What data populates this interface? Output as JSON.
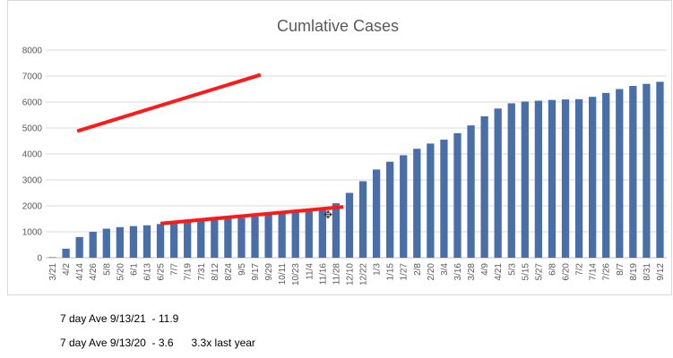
{
  "chart_data": {
    "type": "bar",
    "title": "Cumlative Cases",
    "xlabel": "",
    "ylabel": "",
    "ylim": [
      0,
      8000
    ],
    "yticks": [
      0,
      1000,
      2000,
      3000,
      4000,
      5000,
      6000,
      7000,
      8000
    ],
    "grid": true,
    "legend": "none",
    "bar_color": "#4a6fa8",
    "categories": [
      "3/21",
      "4/2",
      "4/14",
      "4/26",
      "5/8",
      "5/20",
      "6/1",
      "6/13",
      "6/25",
      "7/7",
      "7/19",
      "7/31",
      "8/12",
      "8/24",
      "9/5",
      "9/17",
      "9/29",
      "10/11",
      "10/23",
      "11/4",
      "11/16",
      "11/28",
      "12/10",
      "12/22",
      "1/3",
      "1/15",
      "1/27",
      "2/8",
      "2/20",
      "3/4",
      "3/16",
      "3/28",
      "4/9",
      "4/21",
      "5/3",
      "5/15",
      "5/27",
      "6/8",
      "6/20",
      "7/2",
      "7/14",
      "7/26",
      "8/7",
      "8/19",
      "8/31",
      "9/12"
    ],
    "values": [
      20,
      350,
      800,
      1000,
      1120,
      1180,
      1220,
      1250,
      1300,
      1350,
      1400,
      1430,
      1460,
      1500,
      1540,
      1590,
      1650,
      1700,
      1760,
      1820,
      1900,
      2100,
      2500,
      2950,
      3400,
      3700,
      3950,
      4200,
      4400,
      4550,
      4800,
      5100,
      5450,
      5750,
      5950,
      6020,
      6050,
      6080,
      6100,
      6110,
      6200,
      6350,
      6500,
      6620,
      6700,
      6780
    ],
    "annotations": [
      {
        "type": "trendline",
        "color": "#ff1a1a",
        "from": {
          "x": "6/25",
          "y": 1320
        },
        "to": {
          "x": "12/4",
          "y": 1960
        }
      },
      {
        "type": "trendline",
        "color": "#ff1a1a",
        "from": {
          "x": "4/12",
          "y": 4880
        },
        "to": {
          "x": "9/22",
          "y": 7050
        }
      }
    ]
  },
  "notes": [
    {
      "text": "7 day Ave 9/13/21  - 11.9"
    },
    {
      "text": "7 day Ave 9/13/20  - 3.6      3.3x last year"
    }
  ]
}
